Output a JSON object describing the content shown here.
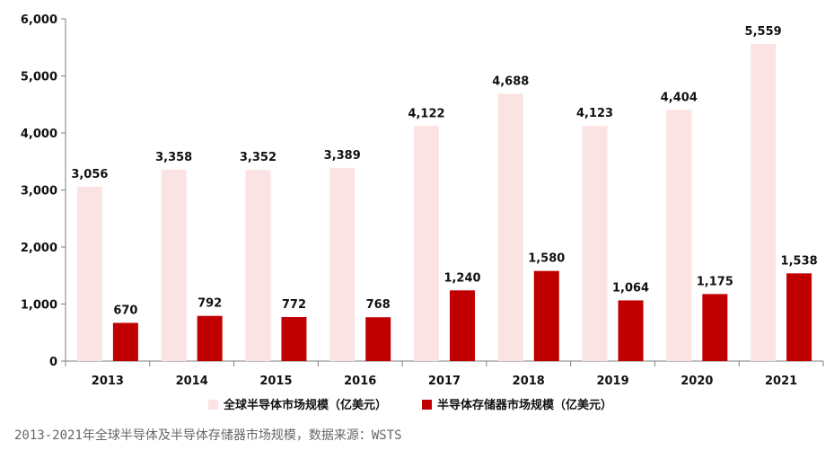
{
  "chart_data": {
    "type": "bar",
    "categories": [
      "2013",
      "2014",
      "2015",
      "2016",
      "2017",
      "2018",
      "2019",
      "2020",
      "2021"
    ],
    "series": [
      {
        "name": "全球半导体市场规模（亿美元）",
        "color": "#fbe3e3",
        "values": [
          3056,
          3358,
          3352,
          3389,
          4122,
          4688,
          4123,
          4404,
          5559
        ]
      },
      {
        "name": "半导体存储器市场规模（亿美元）",
        "color": "#c00000",
        "values": [
          670,
          792,
          772,
          768,
          1240,
          1580,
          1064,
          1175,
          1538
        ]
      }
    ],
    "data_labels": [
      [
        "3,056",
        "3,358",
        "3,352",
        "3,389",
        "4,122",
        "4,688",
        "4,123",
        "4,404",
        "5,559"
      ],
      [
        "670",
        "792",
        "772",
        "768",
        "1,240",
        "1,580",
        "1,064",
        "1,175",
        "1,538"
      ]
    ],
    "yticks": [
      0,
      1000,
      2000,
      3000,
      4000,
      5000,
      6000
    ],
    "ytick_labels": [
      "0",
      "1,000",
      "2,000",
      "3,000",
      "4,000",
      "5,000",
      "6,000"
    ],
    "ylim": [
      0,
      6000
    ],
    "grid": false,
    "legend_position": "bottom",
    "title": "",
    "xlabel": "",
    "ylabel": ""
  },
  "caption": "2013-2021年全球半导体及半导体存储器市场规模，数据来源：WSTS"
}
